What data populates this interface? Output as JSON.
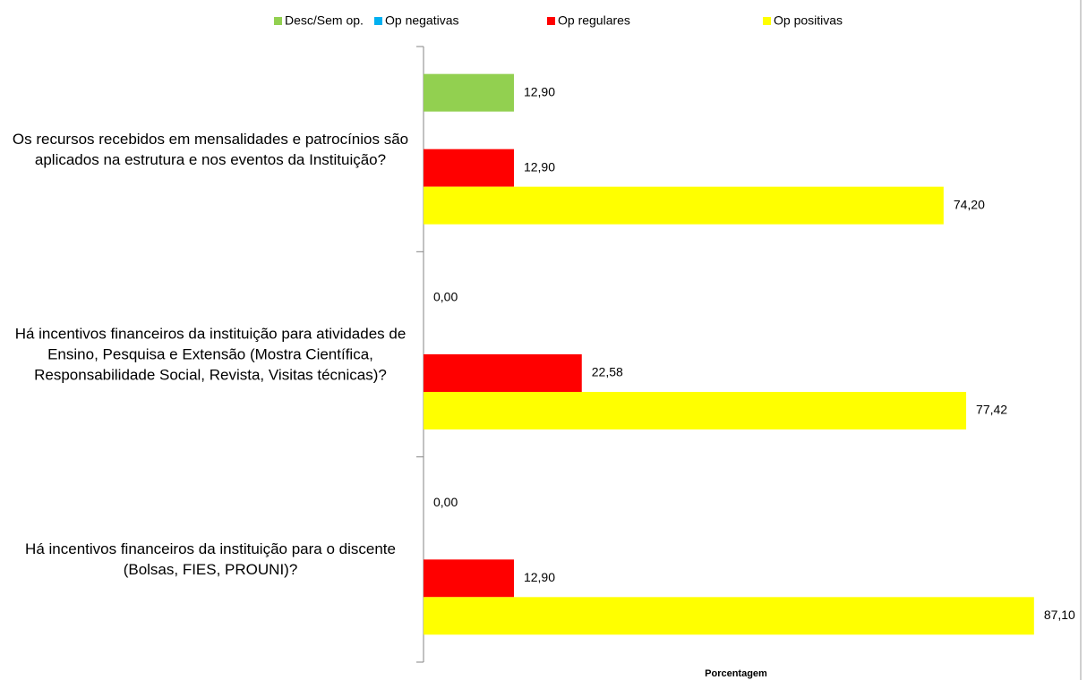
{
  "chart_data": {
    "type": "bar",
    "orientation": "horizontal",
    "x_label": "Porcentagem",
    "categories": [
      "Os recursos recebidos em mensalidades e patrocínios são aplicados na estrutura e nos eventos da Instituição?",
      "Há incentivos financeiros da instituição para atividades de Ensino, Pesquisa e Extensão (Mostra Científica, Responsabilidade Social, Revista, Visitas técnicas)?",
      "Há incentivos financeiros da instituição para o discente (Bolsas, FIES, PROUNI)?"
    ],
    "series": [
      {
        "name": "Desc/Sem op.",
        "color": "#92d050",
        "values": [
          12.9,
          0,
          0
        ],
        "value_labels": [
          "12,90",
          "0,00",
          "0,00"
        ]
      },
      {
        "name": "Op negativas",
        "color": "#00b0f0",
        "values": [
          null,
          null,
          null
        ]
      },
      {
        "name": "Op regulares",
        "color": "#ff0000",
        "values": [
          12.9,
          22.58,
          12.9
        ],
        "value_labels": [
          "12,90",
          "22,58",
          "12,90"
        ]
      },
      {
        "name": "Op positivas",
        "color": "#ffff00",
        "values": [
          74.2,
          77.42,
          87.1
        ],
        "value_labels": [
          "74,20",
          "77,42",
          "87,10"
        ]
      }
    ],
    "xlim": [
      0,
      93
    ],
    "legend": "top"
  }
}
